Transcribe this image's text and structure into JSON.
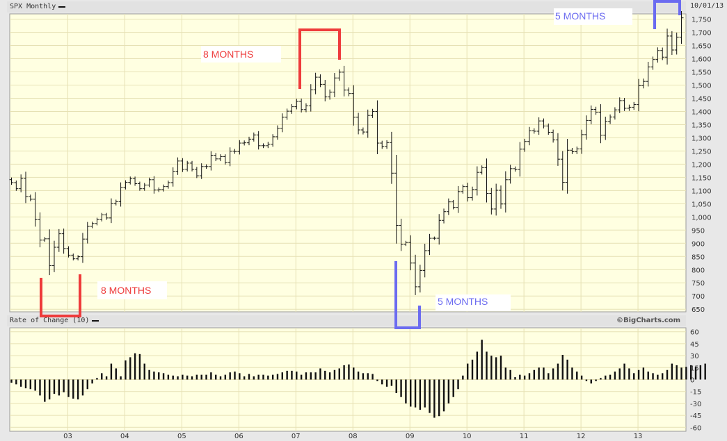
{
  "header": {
    "title": "SPX Monthly",
    "date": "10/01/13"
  },
  "lower_header": {
    "title": "Rate of Change (10)"
  },
  "brand": "©BigCharts.com",
  "colors": {
    "panel_bg": "#ffffe1",
    "grid": "#e6e1b4",
    "red": "#ee3b3b",
    "blue": "#6b6bf0",
    "bar": "#111111"
  },
  "annotations": [
    {
      "text": "8 MONTHS",
      "color": "red"
    },
    {
      "text": "8 MONTHS",
      "color": "red"
    },
    {
      "text": "5 MONTHS",
      "color": "blue"
    },
    {
      "text": "5 MONTHS",
      "color": "blue"
    }
  ],
  "chart_data": [
    {
      "type": "ohlc",
      "title": "SPX Monthly",
      "x_tick_labels": [
        "03",
        "04",
        "05",
        "06",
        "07",
        "08",
        "09",
        "10",
        "11",
        "12",
        "13"
      ],
      "y_tick_labels": [
        "650",
        "700",
        "750",
        "800",
        "850",
        "900",
        "950",
        "1,000",
        "1,050",
        "1,100",
        "1,150",
        "1,200",
        "1,250",
        "1,300",
        "1,350",
        "1,400",
        "1,450",
        "1,500",
        "1,550",
        "1,600",
        "1,650",
        "1,700",
        "1,750"
      ],
      "ylim": [
        640,
        1770
      ],
      "grid": true,
      "series": [
        {
          "name": "SPX",
          "start": "2002-01",
          "close": [
            1130,
            1107,
            1147,
            1077,
            1067,
            990,
            912,
            917,
            815,
            885,
            936,
            880,
            855,
            841,
            849,
            916,
            964,
            975,
            990,
            1008,
            996,
            1051,
            1058,
            1112,
            1131,
            1145,
            1126,
            1107,
            1121,
            1141,
            1102,
            1104,
            1115,
            1130,
            1173,
            1212,
            1181,
            1204,
            1181,
            1156,
            1191,
            1191,
            1234,
            1220,
            1229,
            1207,
            1249,
            1248,
            1280,
            1281,
            1295,
            1311,
            1270,
            1270,
            1276,
            1304,
            1336,
            1378,
            1401,
            1418,
            1438,
            1407,
            1421,
            1482,
            1530,
            1503,
            1455,
            1473,
            1527,
            1549,
            1481,
            1468,
            1378,
            1330,
            1322,
            1385,
            1400,
            1280,
            1267,
            1282,
            1166,
            968,
            896,
            903,
            825,
            735,
            797,
            872,
            919,
            919,
            987,
            1020,
            1057,
            1036,
            1096,
            1115,
            1073,
            1104,
            1169,
            1187,
            1089,
            1030,
            1101,
            1049,
            1141,
            1183,
            1180,
            1257,
            1286,
            1327,
            1325,
            1364,
            1345,
            1321,
            1292,
            1219,
            1131,
            1253,
            1247,
            1258,
            1312,
            1366,
            1408,
            1397,
            1310,
            1362,
            1379,
            1406,
            1441,
            1412,
            1416,
            1426,
            1498,
            1514,
            1569,
            1597,
            1631,
            1606,
            1686,
            1633,
            1682,
            1755
          ]
        }
      ],
      "annotations": [
        "8 MONTHS",
        "8 MONTHS",
        "5 MONTHS",
        "5 MONTHS"
      ]
    },
    {
      "type": "bar",
      "title": "Rate of Change (10)",
      "y_tick_labels": [
        "60",
        "45",
        "30",
        "15",
        "0",
        "-15",
        "-30",
        "-45",
        "-60"
      ],
      "ylim": [
        -65,
        65
      ],
      "grid": true,
      "series": [
        {
          "name": "Rate of Change (10)",
          "start": "2002-01",
          "values": [
            -4,
            -6,
            -9,
            -11,
            -12,
            -14,
            -20,
            -28,
            -25,
            -18,
            -20,
            -16,
            -22,
            -24,
            -25,
            -20,
            -12,
            -5,
            2,
            8,
            4,
            20,
            14,
            4,
            24,
            28,
            33,
            32,
            20,
            12,
            10,
            9,
            8,
            6,
            5,
            4,
            6,
            5,
            4,
            6,
            6,
            6,
            9,
            6,
            4,
            6,
            9,
            10,
            8,
            4,
            7,
            4,
            6,
            6,
            5,
            6,
            7,
            9,
            11,
            11,
            10,
            6,
            9,
            9,
            9,
            14,
            11,
            9,
            12,
            14,
            18,
            19,
            15,
            10,
            8,
            8,
            7,
            -2,
            -6,
            -9,
            -8,
            -17,
            -22,
            -30,
            -34,
            -35,
            -38,
            -35,
            -42,
            -48,
            -46,
            -40,
            -30,
            -22,
            -12,
            5,
            20,
            25,
            35,
            50,
            35,
            30,
            28,
            30,
            15,
            12,
            3,
            6,
            5,
            8,
            12,
            15,
            15,
            8,
            14,
            20,
            31,
            25,
            15,
            10,
            5,
            -2,
            -5,
            -2,
            2,
            5,
            6,
            10,
            14,
            20,
            14,
            8,
            12,
            15,
            10,
            8,
            6,
            8,
            12,
            20,
            18,
            15,
            16,
            18,
            16,
            18,
            20
          ]
        }
      ]
    }
  ]
}
